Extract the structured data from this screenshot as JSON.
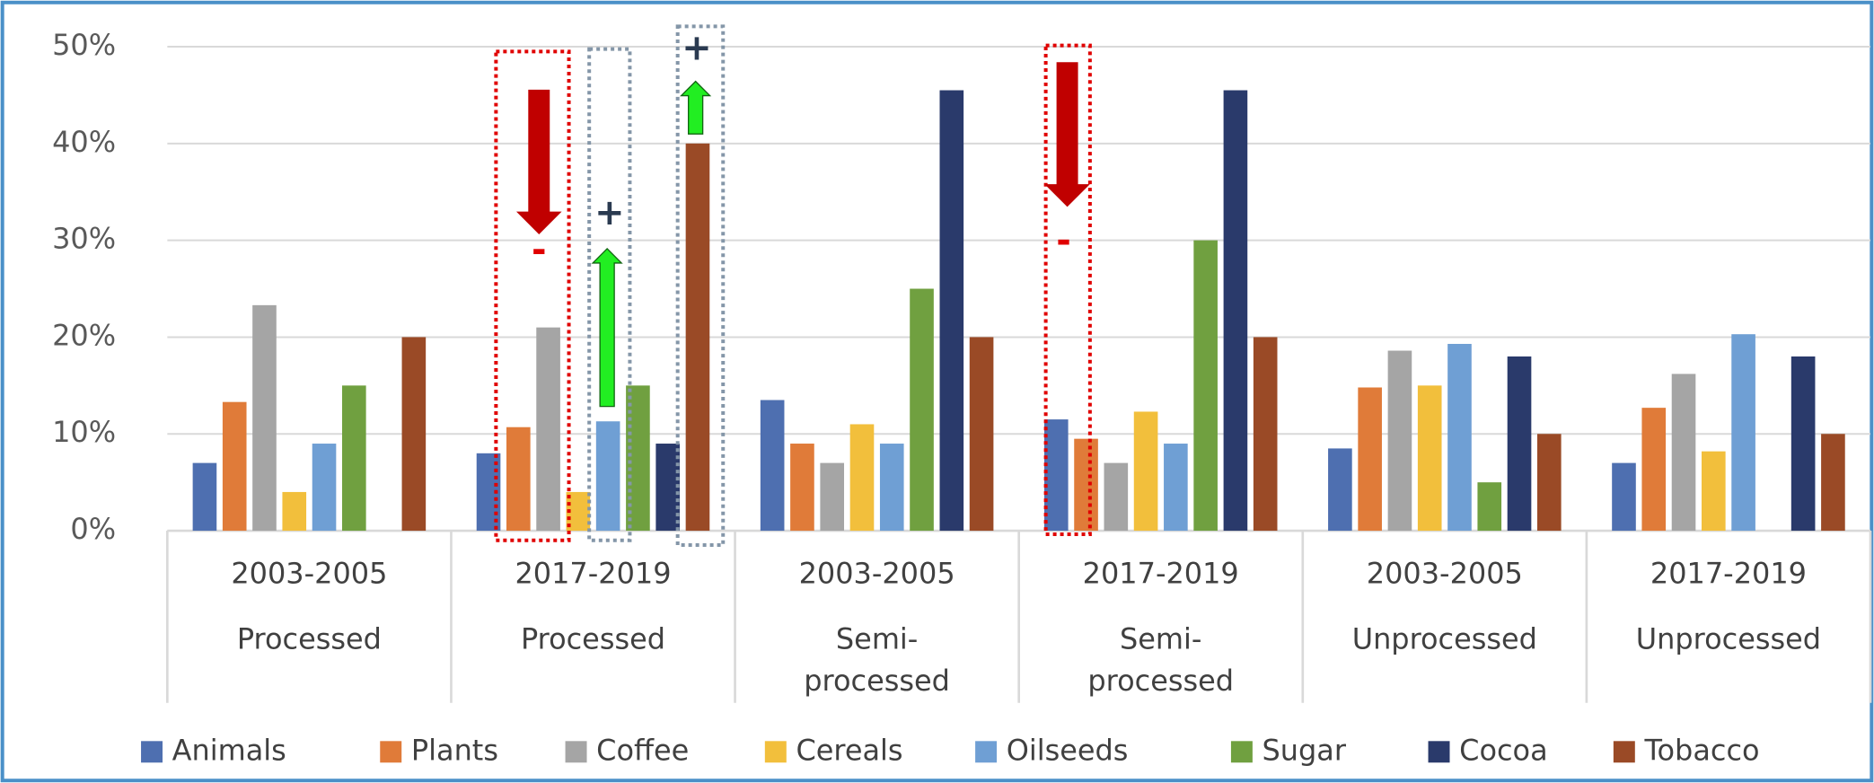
{
  "chart_data": {
    "type": "bar",
    "categories": [
      {
        "period": "2003-2005",
        "group": "Processed"
      },
      {
        "period": "2017-2019",
        "group": "Processed"
      },
      {
        "period": "2003-2005",
        "group": "Semi-processed"
      },
      {
        "period": "2017-2019",
        "group": "Semi-processed"
      },
      {
        "period": "2003-2005",
        "group": "Unprocessed"
      },
      {
        "period": "2017-2019",
        "group": "Unprocessed"
      }
    ],
    "series": [
      {
        "name": "Animals",
        "color": "#4e6fb0",
        "values": [
          7,
          8,
          13.5,
          11.5,
          8.5,
          7
        ]
      },
      {
        "name": "Plants",
        "color": "#e07b39",
        "values": [
          13.3,
          10.7,
          9,
          9.5,
          14.8,
          12.7
        ]
      },
      {
        "name": "Coffee",
        "color": "#a5a5a5",
        "values": [
          23.3,
          21,
          7,
          7,
          18.6,
          16.2
        ]
      },
      {
        "name": "Cereals",
        "color": "#f2bf3c",
        "values": [
          4,
          4,
          11,
          12.3,
          15,
          8.2
        ]
      },
      {
        "name": "Oilseeds",
        "color": "#6f9fd4",
        "values": [
          9,
          11.3,
          9,
          9,
          19.3,
          20.3
        ]
      },
      {
        "name": "Sugar",
        "color": "#70a040",
        "values": [
          15,
          15,
          25,
          30,
          5,
          0
        ]
      },
      {
        "name": "Cocoa",
        "color": "#2a3a6b",
        "values": [
          0,
          9,
          45.5,
          45.5,
          18,
          18
        ]
      },
      {
        "name": "Tobacco",
        "color": "#9a4a26",
        "values": [
          20,
          40,
          20,
          20,
          10,
          10
        ]
      }
    ],
    "ylim": [
      0,
      50
    ],
    "yticks": [
      {
        "value": 0,
        "label": "0%"
      },
      {
        "value": 10,
        "label": "10%"
      },
      {
        "value": 20,
        "label": "20%"
      },
      {
        "value": 30,
        "label": "30%"
      },
      {
        "value": 40,
        "label": "40%"
      },
      {
        "value": 50,
        "label": "50%"
      }
    ],
    "grid": true,
    "legend": "bottom",
    "annotations": [
      "-",
      "+",
      "+",
      "-"
    ]
  }
}
